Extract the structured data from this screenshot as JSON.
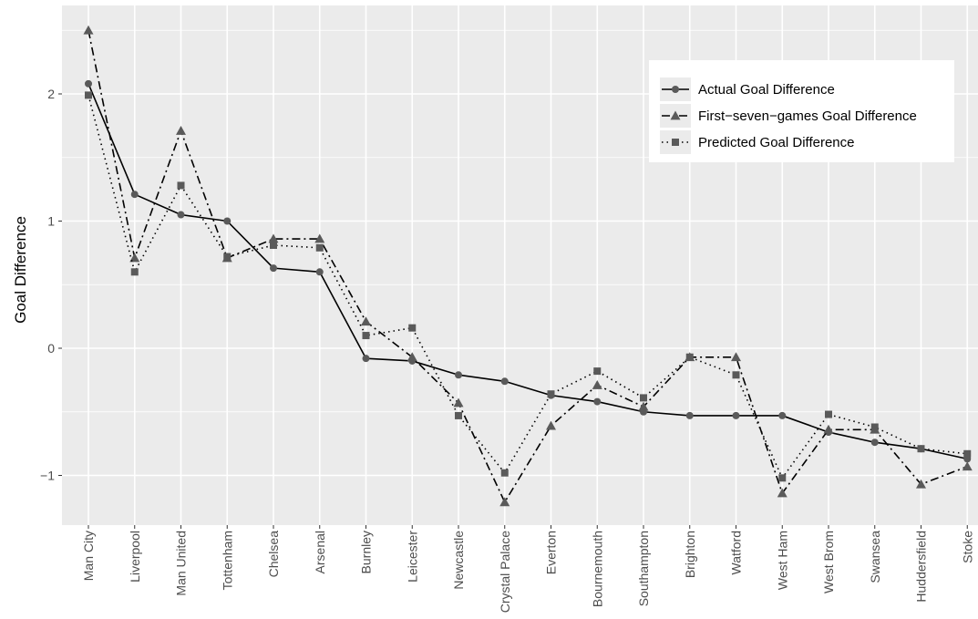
{
  "chart_data": {
    "type": "line",
    "title": "",
    "xlabel": "",
    "ylabel": "Goal Difference",
    "categories": [
      "Man City",
      "Liverpool",
      "Man United",
      "Tottenham",
      "Chelsea",
      "Arsenal",
      "Burnley",
      "Leicester",
      "Newcastle",
      "Crystal Palace",
      "Everton",
      "Bournemouth",
      "Southampton",
      "Brighton",
      "Watford",
      "West Ham",
      "West Brom",
      "Swansea",
      "Huddersfield",
      "Stoke"
    ],
    "ylim": [
      -1.4,
      2.7
    ],
    "yticks": [
      -1,
      0,
      1,
      2
    ],
    "ytick_labels": [
      "−1",
      "0",
      "1",
      "2"
    ],
    "grid": true,
    "legend_position": "top-right",
    "series": [
      {
        "name": "Actual Goal Difference",
        "line": "solid",
        "marker": "circle",
        "values": [
          2.08,
          1.21,
          1.05,
          1.0,
          0.63,
          0.6,
          -0.08,
          -0.1,
          -0.21,
          -0.26,
          -0.37,
          -0.42,
          -0.5,
          -0.53,
          -0.53,
          -0.53,
          -0.66,
          -0.74,
          -0.79,
          -0.87
        ]
      },
      {
        "name": "First−seven−games Goal Difference",
        "line": "dashdot",
        "marker": "triangle",
        "values": [
          2.5,
          0.71,
          1.71,
          0.71,
          0.86,
          0.86,
          0.21,
          -0.07,
          -0.43,
          -1.21,
          -0.61,
          -0.29,
          -0.46,
          -0.07,
          -0.07,
          -1.14,
          -0.64,
          -0.64,
          -1.07,
          -0.93
        ]
      },
      {
        "name": "Predicted Goal Difference",
        "line": "dotted",
        "marker": "square",
        "values": [
          1.99,
          0.6,
          1.28,
          0.72,
          0.81,
          0.79,
          0.1,
          0.16,
          -0.53,
          -0.98,
          -0.36,
          -0.18,
          -0.39,
          -0.07,
          -0.21,
          -1.02,
          -0.52,
          -0.62,
          -0.79,
          -0.83
        ]
      }
    ]
  },
  "colors": {
    "panel": "#ebebeb",
    "grid": "#ffffff",
    "series": "#000000",
    "marker": "#5a5a5a",
    "tick_label": "#4d4d4d"
  }
}
